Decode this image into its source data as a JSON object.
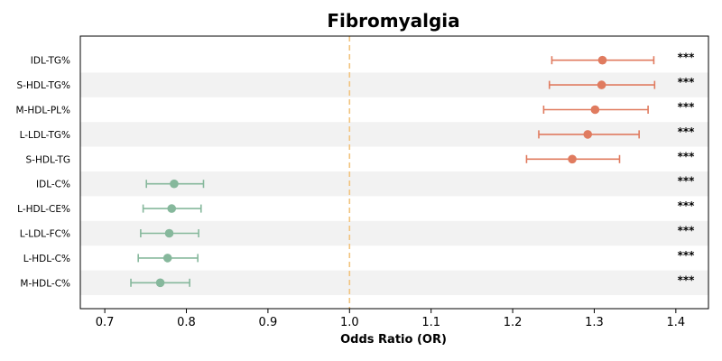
{
  "chart_data": {
    "type": "forest",
    "title": "Fibromyalgia",
    "xlabel": "Odds Ratio (OR)",
    "xlim": [
      0.67,
      1.44
    ],
    "xticks": [
      "0.7",
      "0.8",
      "0.9",
      "1.0",
      "1.1",
      "1.2",
      "1.3",
      "1.4"
    ],
    "reference_line": 1.0,
    "reference_color": "#f2c37e",
    "colors": {
      "increased": "#e07b5f",
      "decreased": "#86b89c",
      "stripe": "#f2f2f2"
    },
    "grid": false,
    "rows": [
      {
        "label": "IDL-TG%",
        "or": 1.31,
        "lo": 1.248,
        "hi": 1.373,
        "sig": "***",
        "direction": "increased"
      },
      {
        "label": "S-HDL-TG%",
        "or": 1.309,
        "lo": 1.245,
        "hi": 1.374,
        "sig": "***",
        "direction": "increased"
      },
      {
        "label": "M-HDL-PL%",
        "or": 1.301,
        "lo": 1.238,
        "hi": 1.366,
        "sig": "***",
        "direction": "increased"
      },
      {
        "label": "L-LDL-TG%",
        "or": 1.292,
        "lo": 1.232,
        "hi": 1.355,
        "sig": "***",
        "direction": "increased"
      },
      {
        "label": "S-HDL-TG",
        "or": 1.273,
        "lo": 1.217,
        "hi": 1.331,
        "sig": "***",
        "direction": "increased"
      },
      {
        "label": "IDL-C%",
        "or": 0.785,
        "lo": 0.751,
        "hi": 0.821,
        "sig": "***",
        "direction": "decreased"
      },
      {
        "label": "L-HDL-CE%",
        "or": 0.782,
        "lo": 0.747,
        "hi": 0.818,
        "sig": "***",
        "direction": "decreased"
      },
      {
        "label": "L-LDL-FC%",
        "or": 0.779,
        "lo": 0.744,
        "hi": 0.815,
        "sig": "***",
        "direction": "decreased"
      },
      {
        "label": "L-HDL-C%",
        "or": 0.777,
        "lo": 0.741,
        "hi": 0.814,
        "sig": "***",
        "direction": "decreased"
      },
      {
        "label": "M-HDL-C%",
        "or": 0.768,
        "lo": 0.732,
        "hi": 0.804,
        "sig": "***",
        "direction": "decreased"
      }
    ]
  }
}
